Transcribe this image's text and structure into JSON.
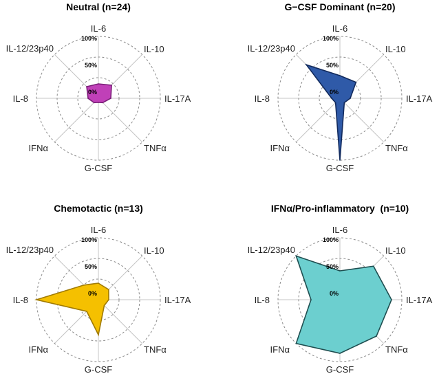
{
  "chart_data": [
    {
      "type": "radar",
      "title": "Neutral (n=24)",
      "axes": [
        "IL-6",
        "IL-10",
        "IL-17A",
        "TNFα",
        "G-CSF",
        "IFNα",
        "IL-8",
        "IL-12/23p40"
      ],
      "ring_labels": [
        "100%",
        "50%",
        "0%"
      ],
      "range": [
        -50,
        100
      ],
      "values": [
        -15,
        -5,
        -20,
        -35,
        -40,
        -35,
        -25,
        -10
      ],
      "color": "#c040b8",
      "stroke": "#7a1e78"
    },
    {
      "type": "radar",
      "title": "G−CSF Dominant (n=20)",
      "axes": [
        "IL-6",
        "IL-10",
        "IL-17A",
        "TNFα",
        "G-CSF",
        "IFNα",
        "IL-8",
        "IL-12/23p40"
      ],
      "ring_labels": [
        "100%",
        "50%",
        "0%"
      ],
      "range": [
        -50,
        100
      ],
      "values": [
        5,
        5,
        -25,
        -35,
        100,
        -35,
        -30,
        65
      ],
      "color": "#2f5aa8",
      "stroke": "#122a5c"
    },
    {
      "type": "radar",
      "title": "Chemotactic (n=13)",
      "axes": [
        "IL-6",
        "IL-10",
        "IL-17A",
        "TNFα",
        "G-CSF",
        "IFNα",
        "IL-8",
        "IL-12/23p40"
      ],
      "ring_labels": [
        "100%",
        "50%",
        "0%"
      ],
      "range": [
        -50,
        100
      ],
      "values": [
        -10,
        -15,
        -25,
        -30,
        35,
        -10,
        100,
        0
      ],
      "color": "#f5c000",
      "stroke": "#a07a00"
    },
    {
      "type": "radar",
      "title": "IFNα/Pro-inflammatory  (n=10)",
      "axes": [
        "IL-6",
        "IL-10",
        "IL-17A",
        "TNFα",
        "G-CSF",
        "IFNα",
        "IL-8",
        "IL-12/23p40"
      ],
      "ring_labels": [
        "100%",
        "50%",
        "0%"
      ],
      "range": [
        -50,
        100
      ],
      "values": [
        20,
        65,
        75,
        75,
        80,
        100,
        20,
        100
      ],
      "color": "#6ccfcf",
      "stroke": "#1f4e50"
    }
  ]
}
